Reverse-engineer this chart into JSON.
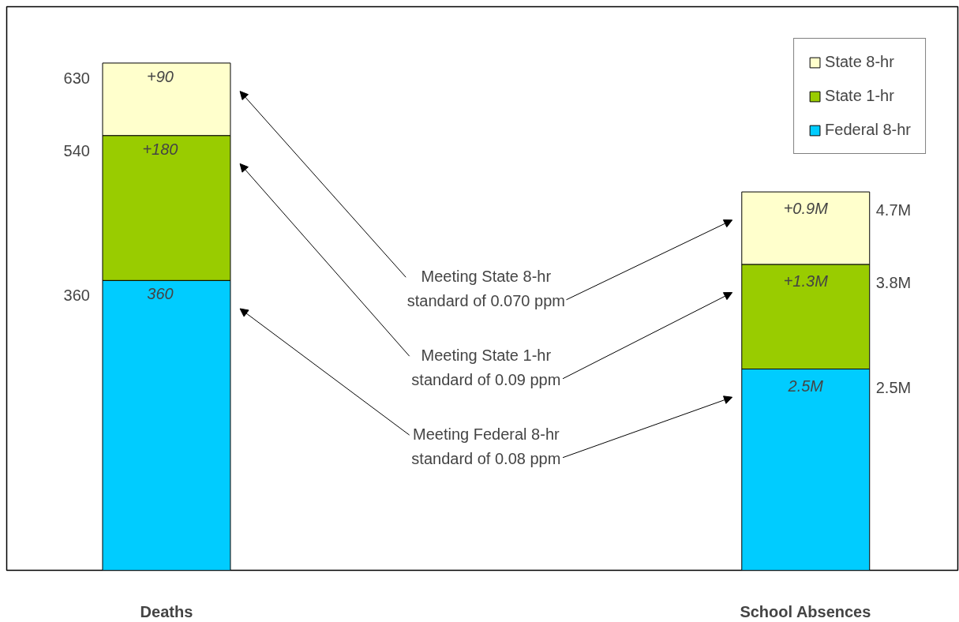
{
  "chart_data": {
    "type": "bar",
    "stacked": true,
    "categories": [
      "Deaths",
      "School Absences"
    ],
    "ylim": [
      0,
      700
    ],
    "y2lim": [
      0,
      7
    ],
    "tick_labels": false,
    "series": [
      {
        "name": "Federal 8-hr",
        "color": "#00ccff",
        "values": [
          360,
          null
        ],
        "value_labels": [
          "360",
          null
        ]
      },
      {
        "name": "State 1-hr",
        "color": "#99cc00",
        "values": [
          180,
          null
        ],
        "value_labels": [
          "+180",
          null
        ]
      },
      {
        "name": "State 8-hr",
        "color": "#ffffcc",
        "values": [
          90,
          null
        ],
        "value_labels": [
          "+90",
          null
        ]
      },
      {
        "color": "#00ccff",
        "axis": "y2",
        "values": [
          null,
          2.5
        ],
        "value_labels": [
          null,
          "2.5M"
        ]
      },
      {
        "color": "#99cc00",
        "axis": "y2",
        "values": [
          null,
          1.3
        ],
        "value_labels": [
          null,
          "+1.3M"
        ]
      },
      {
        "color": "#ffffcc",
        "axis": "y2",
        "values": [
          null,
          0.9
        ],
        "value_labels": [
          null,
          "+0.9M"
        ]
      }
    ],
    "legend": "top right",
    "annotations": [
      "630",
      "540",
      "360",
      "4.7M",
      "3.8M",
      "2.5M",
      "Meeting State 8-hr\nstandard of 0.070 ppm",
      "Meeting State 1-hr\nstandard of 0.09 ppm",
      "Meeting Federal 8-hr\nstandard of 0.08 ppm"
    ]
  }
}
